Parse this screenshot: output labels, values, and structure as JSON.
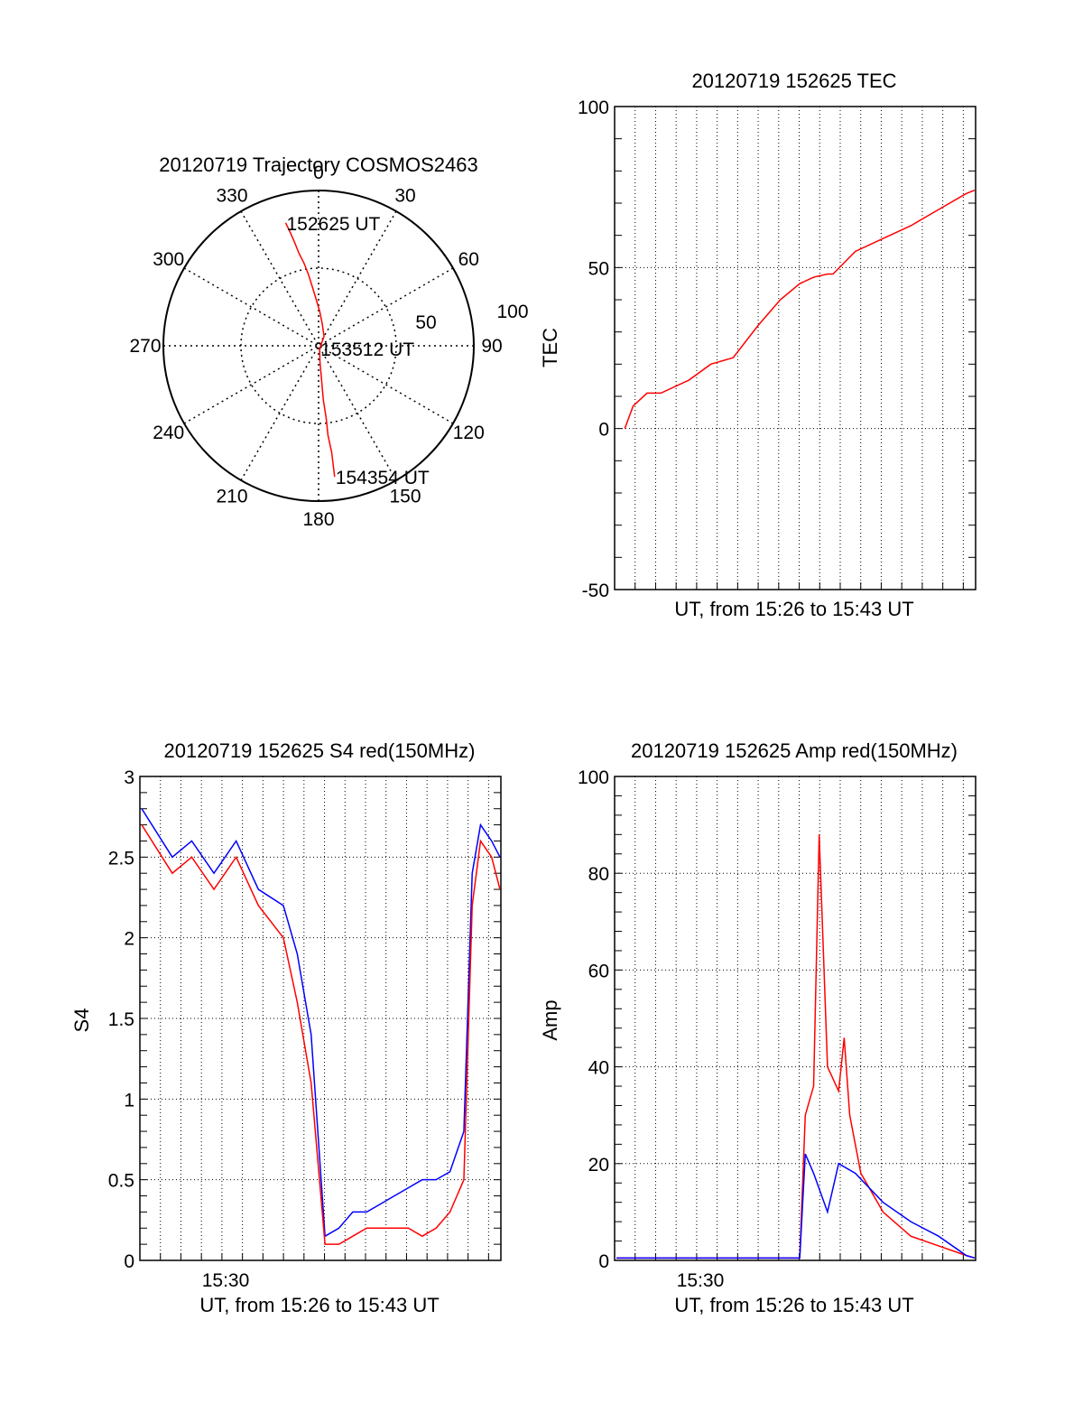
{
  "colors": {
    "red": "#ff0000",
    "blue": "#0000ff",
    "axis": "#000000"
  },
  "chart_data": [
    {
      "id": "trajectory",
      "type": "polar",
      "title": "20120719 Trajectory COSMOS2463",
      "angle_labels": [
        "0",
        "30",
        "60",
        "90",
        "120",
        "150",
        "180",
        "210",
        "240",
        "270",
        "300",
        "330"
      ],
      "radial_labels": [
        "50",
        "100"
      ],
      "radial_max": 100,
      "markers": [
        {
          "label": "152625 UT",
          "az": 345,
          "r": 82
        },
        {
          "label": "153512 UT",
          "az": 160,
          "r": 2
        },
        {
          "label": "154354 UT",
          "az": 173,
          "r": 85
        }
      ],
      "track": [
        [
          345,
          82
        ],
        [
          346,
          75
        ],
        [
          347,
          68
        ],
        [
          348,
          61
        ],
        [
          350,
          54
        ],
        [
          352,
          46
        ],
        [
          354,
          38
        ],
        [
          357,
          30
        ],
        [
          2,
          22
        ],
        [
          10,
          14
        ],
        [
          30,
          7
        ],
        [
          160,
          2
        ],
        [
          175,
          10
        ],
        [
          175,
          22
        ],
        [
          175,
          35
        ],
        [
          174,
          47
        ],
        [
          174,
          58
        ],
        [
          173,
          69
        ],
        [
          173,
          77
        ],
        [
          173,
          85
        ]
      ]
    },
    {
      "id": "tec",
      "type": "line",
      "title": "20120719 152625 TEC",
      "xlabel": "UT, from 15:26 to 15:43 UT",
      "ylabel": "TEC",
      "ylim": [
        -50,
        100
      ],
      "yticks": [
        "-50",
        "0",
        "50",
        "100"
      ],
      "xlim": [
        15.4333,
        16.7333
      ],
      "series": [
        {
          "color": "red",
          "x": [
            15.47,
            15.5,
            15.55,
            15.6,
            15.7,
            15.78,
            15.86,
            15.95,
            16.03,
            16.1,
            16.15,
            16.2,
            16.22,
            16.3,
            16.4,
            16.5,
            16.6,
            16.7,
            16.73
          ],
          "y": [
            0,
            7,
            11,
            11,
            15,
            20,
            22,
            32,
            40,
            45,
            47,
            48,
            48,
            55,
            59,
            63,
            68,
            73,
            74
          ]
        }
      ]
    },
    {
      "id": "s4",
      "type": "line",
      "title": "20120719 152625 S4 red(150MHz)",
      "xlabel": "UT, from 15:26 to 15:43 UT",
      "ylabel": "S4",
      "ylim": [
        0,
        3
      ],
      "yticks": [
        "0",
        "0.5",
        "1",
        "1.5",
        "2",
        "2.5",
        "3"
      ],
      "xlim": [
        15.4333,
        16.7333
      ],
      "xtick_label": "15:30",
      "series": [
        {
          "name": "",
          "color": "blue",
          "x": [
            15.44,
            15.55,
            15.62,
            15.7,
            15.78,
            15.86,
            15.95,
            16.0,
            16.05,
            16.1,
            16.15,
            16.2,
            16.25,
            16.3,
            16.35,
            16.4,
            16.45,
            16.5,
            16.55,
            16.6,
            16.63,
            16.66,
            16.7,
            16.73
          ],
          "y": [
            2.8,
            2.5,
            2.6,
            2.4,
            2.6,
            2.3,
            2.2,
            1.9,
            1.4,
            0.15,
            0.2,
            0.3,
            0.3,
            0.35,
            0.4,
            0.45,
            0.5,
            0.5,
            0.55,
            0.8,
            2.4,
            2.7,
            2.6,
            2.5
          ]
        },
        {
          "name": "",
          "color": "red",
          "x": [
            15.44,
            15.55,
            15.62,
            15.7,
            15.78,
            15.86,
            15.95,
            16.0,
            16.05,
            16.1,
            16.15,
            16.2,
            16.25,
            16.3,
            16.35,
            16.4,
            16.45,
            16.5,
            16.55,
            16.6,
            16.63,
            16.66,
            16.7,
            16.73
          ],
          "y": [
            2.7,
            2.4,
            2.5,
            2.3,
            2.5,
            2.2,
            2.0,
            1.6,
            1.1,
            0.1,
            0.1,
            0.15,
            0.2,
            0.2,
            0.2,
            0.2,
            0.15,
            0.2,
            0.3,
            0.5,
            2.2,
            2.6,
            2.5,
            2.3
          ]
        }
      ]
    },
    {
      "id": "amp",
      "type": "line",
      "title": "20120719 152625 Amp red(150MHz)",
      "xlabel": "UT, from 15:26 to 15:43 UT",
      "ylabel": "Amp",
      "ylim": [
        0,
        100
      ],
      "yticks": [
        "0",
        "20",
        "40",
        "60",
        "80",
        "100"
      ],
      "xlim": [
        15.4333,
        16.7333
      ],
      "xtick_label": "15:30",
      "series": [
        {
          "name": "",
          "color": "red",
          "x": [
            15.44,
            16.0,
            16.1,
            16.12,
            16.15,
            16.17,
            16.2,
            16.24,
            16.26,
            16.28,
            16.32,
            16.4,
            16.5,
            16.6,
            16.7,
            16.73
          ],
          "y": [
            0.5,
            0.5,
            0.5,
            30,
            36,
            88,
            40,
            35,
            46,
            30,
            18,
            10,
            5,
            3,
            1,
            0.5
          ]
        },
        {
          "name": "",
          "color": "blue",
          "x": [
            15.44,
            16.0,
            16.1,
            16.12,
            16.15,
            16.2,
            16.24,
            16.3,
            16.4,
            16.5,
            16.6,
            16.7,
            16.73
          ],
          "y": [
            0.5,
            0.5,
            0.5,
            22,
            18,
            10,
            20,
            18,
            12,
            8,
            5,
            1,
            0.5
          ]
        }
      ]
    }
  ]
}
